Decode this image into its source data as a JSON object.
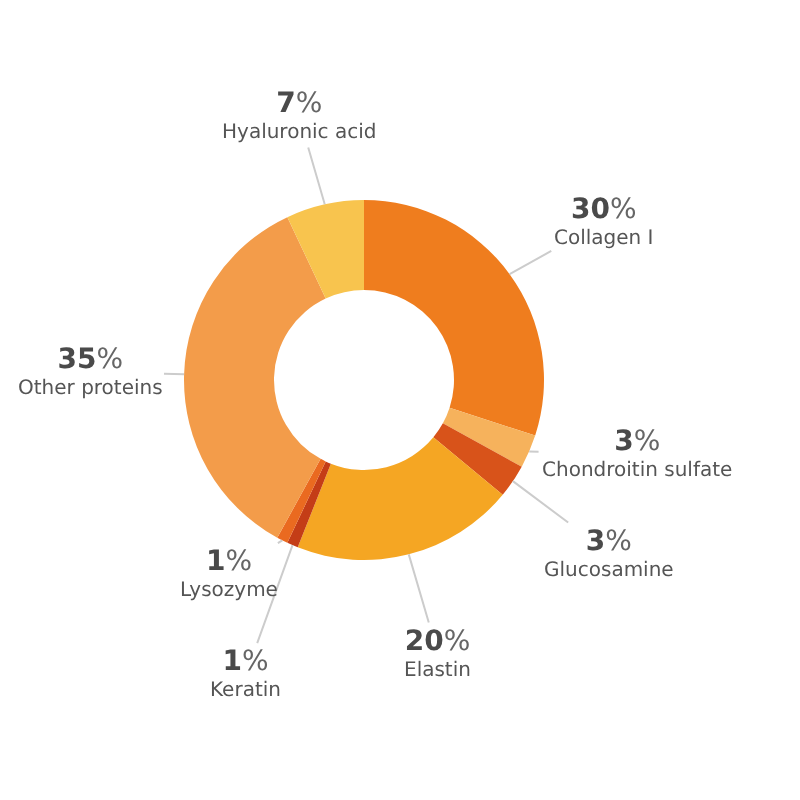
{
  "chart_data": {
    "type": "donut",
    "categories": [
      "Collagen I",
      "Chondroitin sulfate",
      "Glucosamine",
      "Elastin",
      "Keratin",
      "Lysozyme",
      "Other proteins",
      "Hyaluronic acid"
    ],
    "values": [
      30,
      3,
      3,
      20,
      1,
      1,
      35,
      7
    ],
    "colors": [
      "#ef7d1e",
      "#f6b25c",
      "#d8531a",
      "#f5a623",
      "#c43d17",
      "#ea6a20",
      "#f39c4a",
      "#f8c44e"
    ],
    "value_labels": [
      "30%",
      "3%",
      "3%",
      "20%",
      "1%",
      "1%",
      "35%",
      "7%"
    ],
    "legend": false
  }
}
